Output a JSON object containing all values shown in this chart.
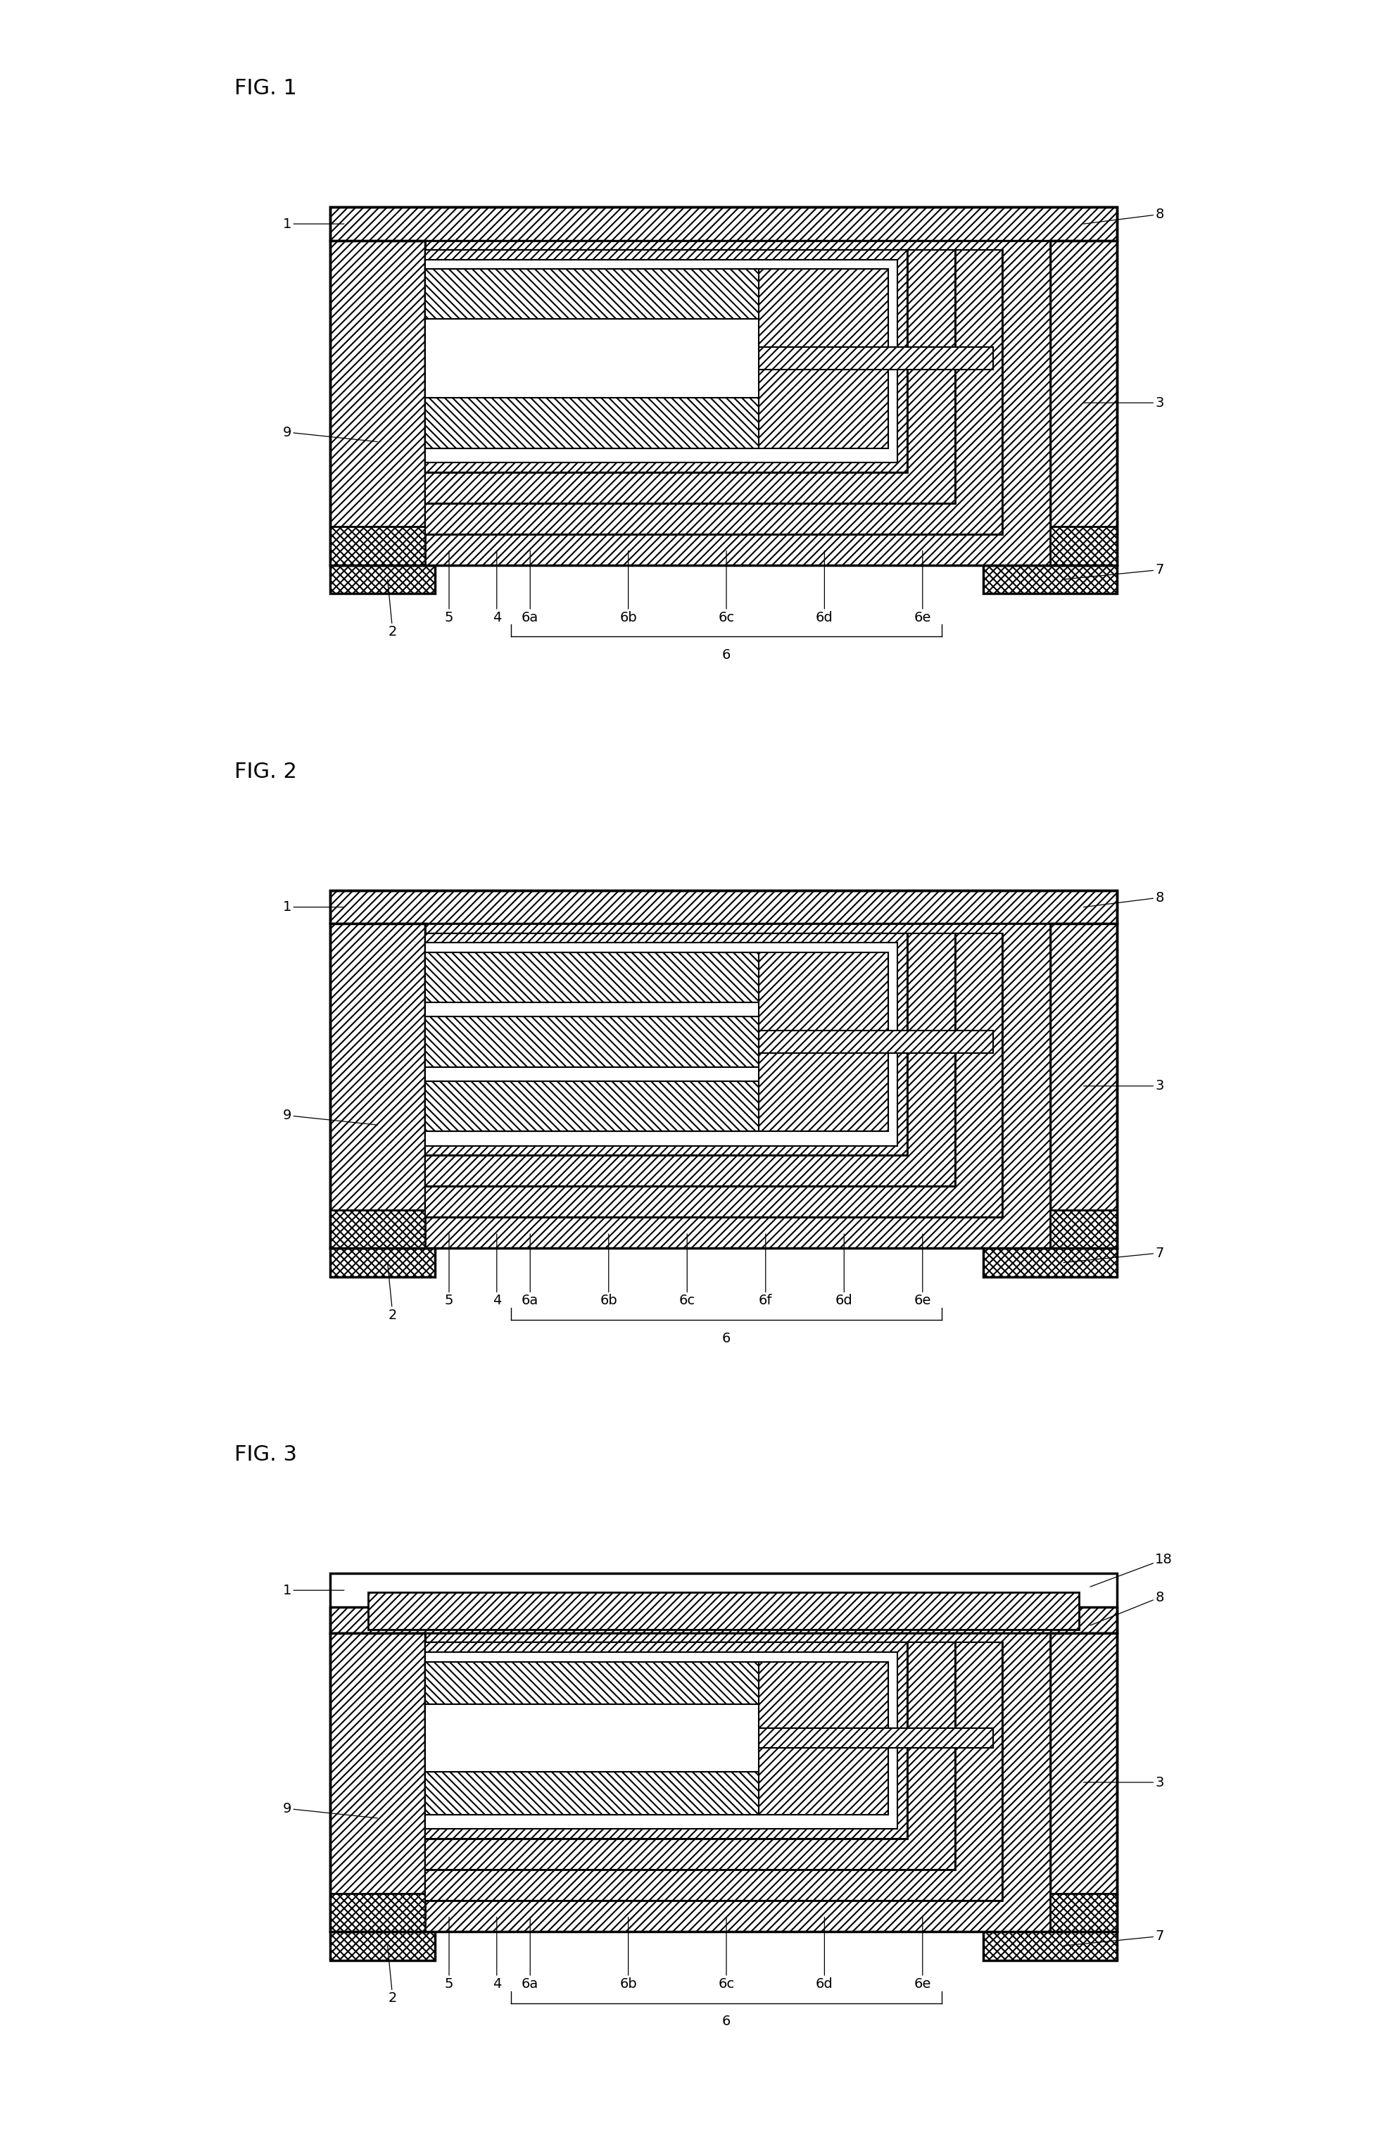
{
  "bg": "#ffffff",
  "fig_titles": [
    "FIG. 1",
    "FIG. 2",
    "FIG. 3"
  ],
  "fig1_sublabels": [
    "6a",
    "6b",
    "6c",
    "6d",
    "6e"
  ],
  "fig2_sublabels": [
    "6a",
    "6b",
    "6c",
    "6f",
    "6d",
    "6e"
  ],
  "fig3_sublabels": [
    "6a",
    "6b",
    "6c",
    "6d",
    "6e"
  ],
  "hatch_main": "///",
  "hatch_dense": "///",
  "hatch_term": "xxx",
  "lw_outer": 2.5,
  "lw_mid": 2.0,
  "lw_inner": 1.5,
  "label_fs": 14,
  "fig_label_fs": 22
}
